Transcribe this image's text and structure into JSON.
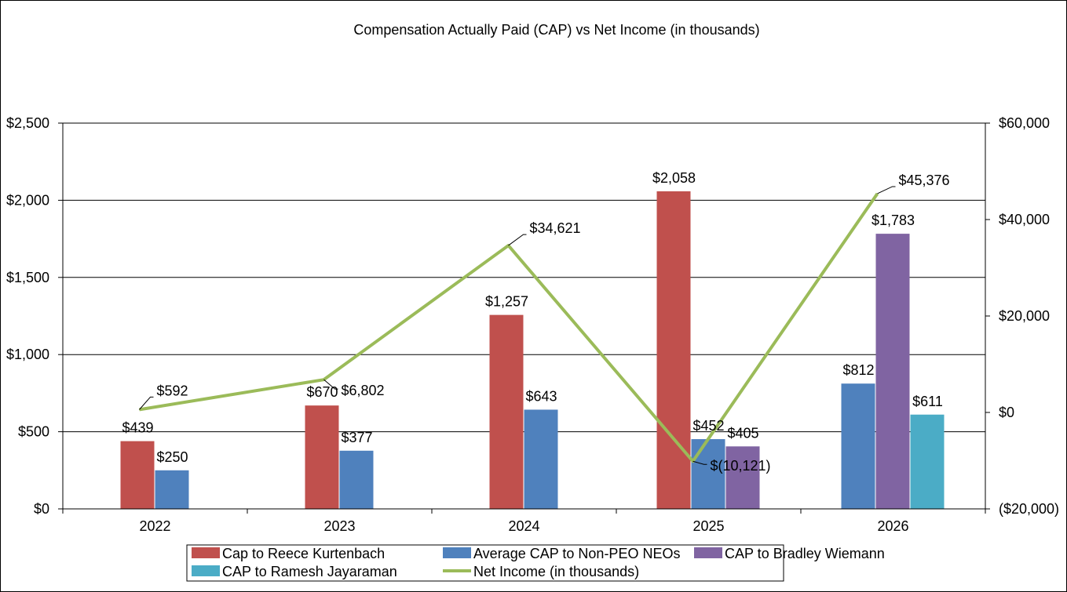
{
  "chart_data": {
    "type": "bar",
    "title": "Compensation Actually Paid (CAP) vs Net Income (in thousands)",
    "categories": [
      "2022",
      "2023",
      "2024",
      "2025",
      "2026"
    ],
    "y_left": {
      "min": 0,
      "max": 2500,
      "ticks": [
        0,
        500,
        1000,
        1500,
        2000,
        2500
      ],
      "tick_labels": [
        "$0",
        "$500",
        "$1,000",
        "$1,500",
        "$2,000",
        "$2,500"
      ]
    },
    "y_right": {
      "min": -20000,
      "max": 60000,
      "ticks": [
        -20000,
        0,
        20000,
        40000,
        60000
      ],
      "tick_labels": [
        "($20,000)",
        "$0",
        "$20,000",
        "$40,000",
        "$60,000"
      ]
    },
    "grid": true,
    "legend_position": "bottom",
    "series": [
      {
        "name": "Cap to Reece Kurtenbach",
        "kind": "bar",
        "axis": "left",
        "color": "#C0504D",
        "values": [
          439,
          670,
          1257,
          2058,
          null
        ],
        "labels": [
          "$439",
          "$670",
          "$1,257",
          "$2,058",
          ""
        ]
      },
      {
        "name": "Average CAP to Non-PEO NEOs",
        "kind": "bar",
        "axis": "left",
        "color": "#4F81BD",
        "values": [
          250,
          377,
          643,
          452,
          812
        ],
        "labels": [
          "$250",
          "$377",
          "$643",
          "$452",
          "$812"
        ]
      },
      {
        "name": "CAP to Bradley Wiemann",
        "kind": "bar",
        "axis": "left",
        "color": "#8064A2",
        "values": [
          null,
          null,
          null,
          405,
          1783
        ],
        "labels": [
          "",
          "",
          "",
          "$405",
          "$1,783"
        ]
      },
      {
        "name": "CAP to Ramesh Jayaraman",
        "kind": "bar",
        "axis": "left",
        "color": "#4BACC6",
        "values": [
          null,
          null,
          null,
          null,
          611
        ],
        "labels": [
          "",
          "",
          "",
          "",
          "$611"
        ]
      },
      {
        "name": "Net Income (in thousands)",
        "kind": "line",
        "axis": "right",
        "color": "#9BBB59",
        "values": [
          592,
          6802,
          34621,
          -10121,
          45376
        ],
        "labels": [
          "$592",
          "$6,802",
          "$34,621",
          "$(10,121)",
          "$45,376"
        ]
      }
    ]
  }
}
